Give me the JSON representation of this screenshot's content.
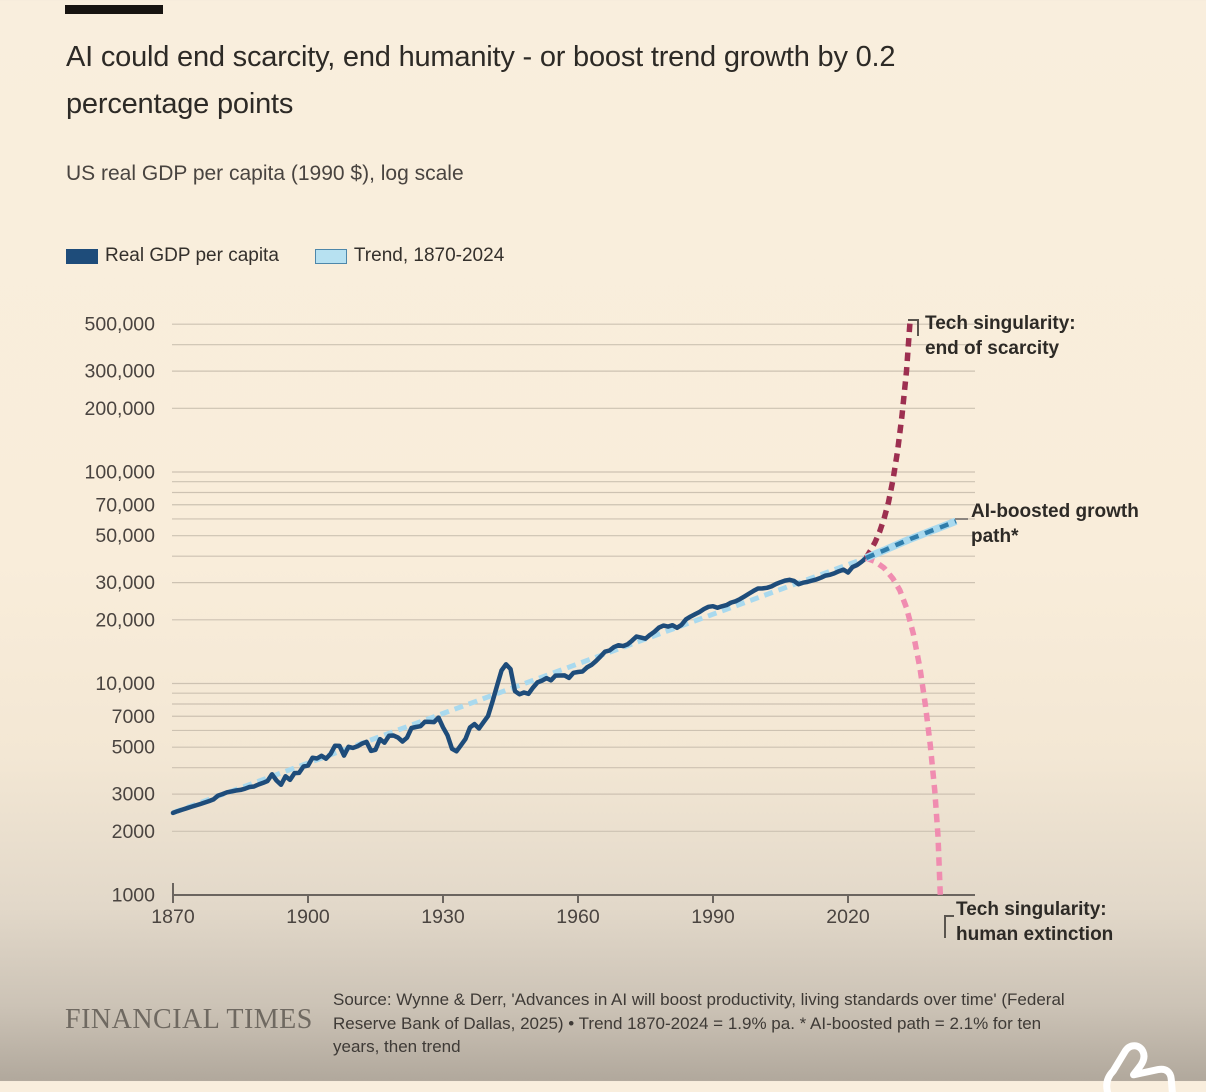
{
  "colors": {
    "background_top": "#f9eedd",
    "background_bottom": "#b1a89c",
    "gdp_line": "#1e4c7a",
    "trend_line": "#a9d9ee",
    "singularity_scarcity_line": "#9d2f50",
    "ai_boosted_line": "#2f7dab",
    "extinction_line": "#f08cb0",
    "gridline": "#cdc2b2",
    "axis": "#6b655f",
    "text_dark": "#2d2a26"
  },
  "header": {
    "title_lines": [
      "AI could end scarcity, end humanity - or boost trend growth by 0.2",
      "percentage points"
    ],
    "subtitle": "US real GDP per capita (1990 $), log scale"
  },
  "legend": {
    "items": [
      {
        "label": "Real GDP per capita",
        "swatch_color": "#1e4c7a",
        "swatch_border": "#1e4c7a"
      },
      {
        "label": "Trend, 1870-2024",
        "swatch_color": "#b7e1f1",
        "swatch_border": "#4e87aa"
      }
    ]
  },
  "annotations": {
    "scarcity": {
      "line1": "Tech singularity:",
      "line2": "end of scarcity"
    },
    "ai_path": {
      "line1": "AI-boosted growth",
      "line2": "path*"
    },
    "extinction": {
      "line1": "Tech singularity:",
      "line2": "human extinction"
    }
  },
  "footer": {
    "brand": "FINANCIAL TIMES",
    "source_lines": [
      "Source: Wynne & Derr, 'Advances in AI will boost productivity, living standards over time' (Federal",
      "Reserve Bank of Dallas, 2025) • Trend 1870-2024 = 1.9% pa. * AI-boosted path = 2.1% for ten",
      "years, then trend"
    ]
  },
  "chart_data": {
    "type": "line",
    "title": "AI could end scarcity, end humanity - or boost trend growth by 0.2 percentage points",
    "subtitle": "US real GDP per capita (1990 $), log scale",
    "y_scale": "log",
    "ylim": [
      1000,
      560000
    ],
    "xlim": [
      1870,
      2044
    ],
    "grid": "horizontal-only",
    "legend_position": "top-left",
    "xticks": [
      1870,
      1900,
      1930,
      1960,
      1990,
      2020
    ],
    "yticks": [
      {
        "label": "500,000",
        "value": 500000
      },
      {
        "label": "300,000",
        "value": 300000
      },
      {
        "label": "200,000",
        "value": 200000
      },
      {
        "label": "100,000",
        "value": 100000
      },
      {
        "label": "70,000",
        "value": 70000
      },
      {
        "label": "50,000",
        "value": 50000
      },
      {
        "label": "30,000",
        "value": 30000
      },
      {
        "label": "20,000",
        "value": 20000
      },
      {
        "label": "10,000",
        "value": 10000
      },
      {
        "label": "7000",
        "value": 7000
      },
      {
        "label": "5000",
        "value": 5000
      },
      {
        "label": "3000",
        "value": 3000
      },
      {
        "label": "2000",
        "value": 2000
      },
      {
        "label": "1000",
        "value": 1000
      }
    ],
    "grid_levels": [
      2000,
      3000,
      4000,
      5000,
      6000,
      7000,
      8000,
      9000,
      10000,
      20000,
      30000,
      40000,
      50000,
      60000,
      70000,
      80000,
      90000,
      100000,
      200000,
      300000,
      400000,
      500000
    ],
    "series": [
      {
        "name": "Real GDP per capita",
        "style": "solid",
        "color": "#1e4c7a",
        "start_year": 1870,
        "values": [
          2445,
          2490,
          2530,
          2570,
          2610,
          2650,
          2690,
          2735,
          2780,
          2830,
          2950,
          3000,
          3060,
          3090,
          3120,
          3140,
          3180,
          3240,
          3260,
          3330,
          3390,
          3460,
          3720,
          3480,
          3320,
          3640,
          3500,
          3770,
          3780,
          4050,
          4090,
          4460,
          4420,
          4550,
          4410,
          4640,
          5080,
          5070,
          4560,
          5020,
          4960,
          5050,
          5200,
          5300,
          4800,
          4860,
          5460,
          5250,
          5660,
          5680,
          5550,
          5320,
          5540,
          6160,
          6230,
          6280,
          6600,
          6580,
          6570,
          6900,
          6210,
          5690,
          4910,
          4780,
          5110,
          5470,
          6200,
          6430,
          6130,
          6560,
          7010,
          8210,
          9740,
          11520,
          12330,
          11710,
          9200,
          8890,
          9070,
          8940,
          9560,
          10120,
          10320,
          10610,
          10360,
          10900,
          10910,
          10920,
          10630,
          11230,
          11330,
          11400,
          11910,
          12240,
          12770,
          13420,
          14130,
          14330,
          14860,
          15180,
          15030,
          15300,
          15940,
          16690,
          16490,
          16280,
          16980,
          17570,
          18370,
          18790,
          18580,
          18860,
          18330,
          18920,
          20120,
          20720,
          21240,
          21790,
          22500,
          23060,
          23200,
          22790,
          23170,
          23480,
          24130,
          24480,
          25070,
          25820,
          26620,
          27400,
          28130,
          28150,
          28350,
          28790,
          29530,
          30140,
          30640,
          30930,
          30550,
          29480,
          29950,
          30230,
          30670,
          31070,
          31650,
          32370,
          32660,
          33230,
          33970,
          34570,
          33470,
          35500,
          36300,
          37600,
          39200
        ]
      },
      {
        "name": "Trend, 1870-2024",
        "style": "dashed",
        "color": "#a9d9ee",
        "points": [
          [
            1870,
            2450
          ],
          [
            2024,
            39200
          ]
        ],
        "growth_rate_label": "1.9% pa."
      },
      {
        "name": "Tech singularity: end of scarcity",
        "style": "dashed",
        "color": "#9d2f50",
        "points": [
          [
            2024,
            39200
          ],
          [
            2025,
            42500
          ],
          [
            2026,
            46500
          ],
          [
            2027,
            52000
          ],
          [
            2028,
            60000
          ],
          [
            2029,
            72000
          ],
          [
            2030,
            92000
          ],
          [
            2031,
            125000
          ],
          [
            2032,
            185000
          ],
          [
            2033,
            300000
          ],
          [
            2033.8,
            520000
          ]
        ]
      },
      {
        "name": "AI-boosted growth path*",
        "style": "dashed",
        "color": "#2f7dab",
        "casing_color": "#a9d9ee",
        "points": [
          [
            2024,
            39200
          ],
          [
            2026,
            40900
          ],
          [
            2028,
            42600
          ],
          [
            2030,
            44500
          ],
          [
            2032,
            46400
          ],
          [
            2034,
            48400
          ],
          [
            2036,
            50200
          ],
          [
            2038,
            52200
          ],
          [
            2040,
            54200
          ],
          [
            2042,
            56300
          ],
          [
            2044,
            58500
          ]
        ],
        "growth_rate_label": "2.1% for ten years, then trend"
      },
      {
        "name": "Tech singularity: human extinction",
        "style": "dashed",
        "color": "#f08cb0",
        "points": [
          [
            2024,
            39200
          ],
          [
            2026,
            37800
          ],
          [
            2028,
            35200
          ],
          [
            2030,
            31300
          ],
          [
            2031.5,
            27600
          ],
          [
            2033,
            22800
          ],
          [
            2034.5,
            17200
          ],
          [
            2036,
            11800
          ],
          [
            2037.2,
            7900
          ],
          [
            2038.3,
            5100
          ],
          [
            2039.3,
            3100
          ],
          [
            2040,
            1900
          ],
          [
            2040.5,
            1000
          ]
        ]
      }
    ]
  }
}
